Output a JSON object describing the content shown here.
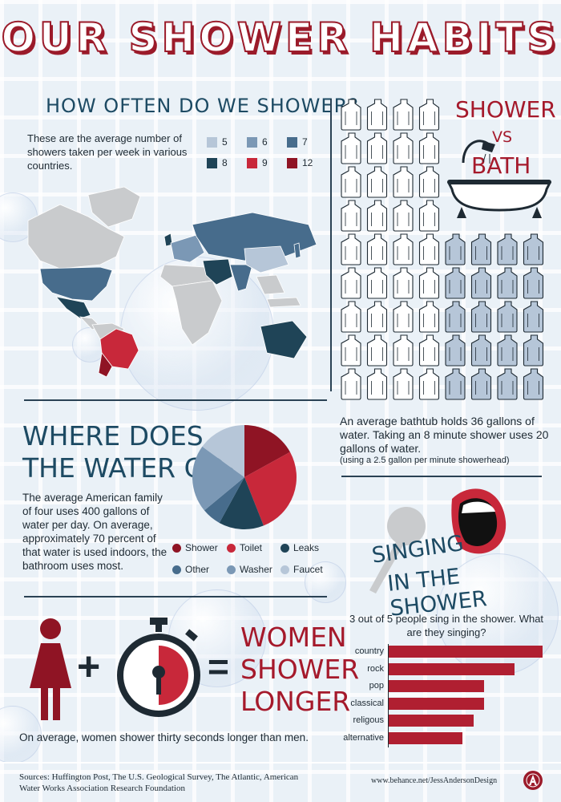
{
  "title": "OUR SHOWER HABITS",
  "how_often": {
    "heading": "HOW OFTEN DO WE SHOWER?",
    "description": "These are the average number of showers taken per week in various countries.",
    "legend": [
      {
        "label": "5",
        "color": "#b6c6d8"
      },
      {
        "label": "6",
        "color": "#7b98b5"
      },
      {
        "label": "7",
        "color": "#476c8c"
      },
      {
        "label": "8",
        "color": "#1f4457"
      },
      {
        "label": "9",
        "color": "#c8283a"
      },
      {
        "label": "12",
        "color": "#8f1424"
      }
    ]
  },
  "shower_vs_bath": {
    "heading_1": "SHOWER",
    "heading_2": "VS",
    "heading_3": "BATH",
    "description": "An average bathtub holds 36 gallons of water. Taking an 8 minute shower uses 20 gallons of water.",
    "note": "(using a 2.5 gallon per minute showerhead)",
    "bath_gallons": 36,
    "shower_gallons": 20
  },
  "water_go": {
    "heading_1": "WHERE DOES",
    "heading_2": "THE WATER GO?",
    "description": "The average American family of four uses 400 gallons of water per day. On average, approximately 70 percent of that water is used indoors, the bathroom uses most."
  },
  "women": {
    "heading_1": "WOMEN",
    "heading_2": "SHOWER",
    "heading_3": "LONGER",
    "plus": "+",
    "equals": "=",
    "description": "On average, women shower thirty seconds longer than men."
  },
  "singing": {
    "heading_1": "SINGING",
    "heading_2": "IN THE SHOWER",
    "description": "3 out of 5 people sing in the shower. What are they singing?"
  },
  "sources": "Sources: Huffington Post, The U.S. Geological Survey, The Atlantic, American Water Works Association Research Foundation",
  "credit": "www.behance.net/JessAndersonDesign",
  "chart_data": [
    {
      "type": "pie",
      "categories": [
        "Shower",
        "Toilet",
        "Leaks",
        "Other",
        "Washer",
        "Faucet"
      ],
      "values": [
        17,
        27,
        14,
        6,
        21,
        15
      ],
      "colors": [
        "#8f1424",
        "#c8283a",
        "#1f4457",
        "#476c8c",
        "#7b98b5",
        "#b6c6d8"
      ],
      "legend": "below"
    },
    {
      "type": "bar",
      "orientation": "horizontal",
      "categories": [
        "country",
        "rock",
        "pop",
        "classical",
        "religous",
        "alternative"
      ],
      "values": [
        100,
        82,
        62,
        62,
        55,
        48
      ],
      "color": "#b01f31"
    }
  ]
}
